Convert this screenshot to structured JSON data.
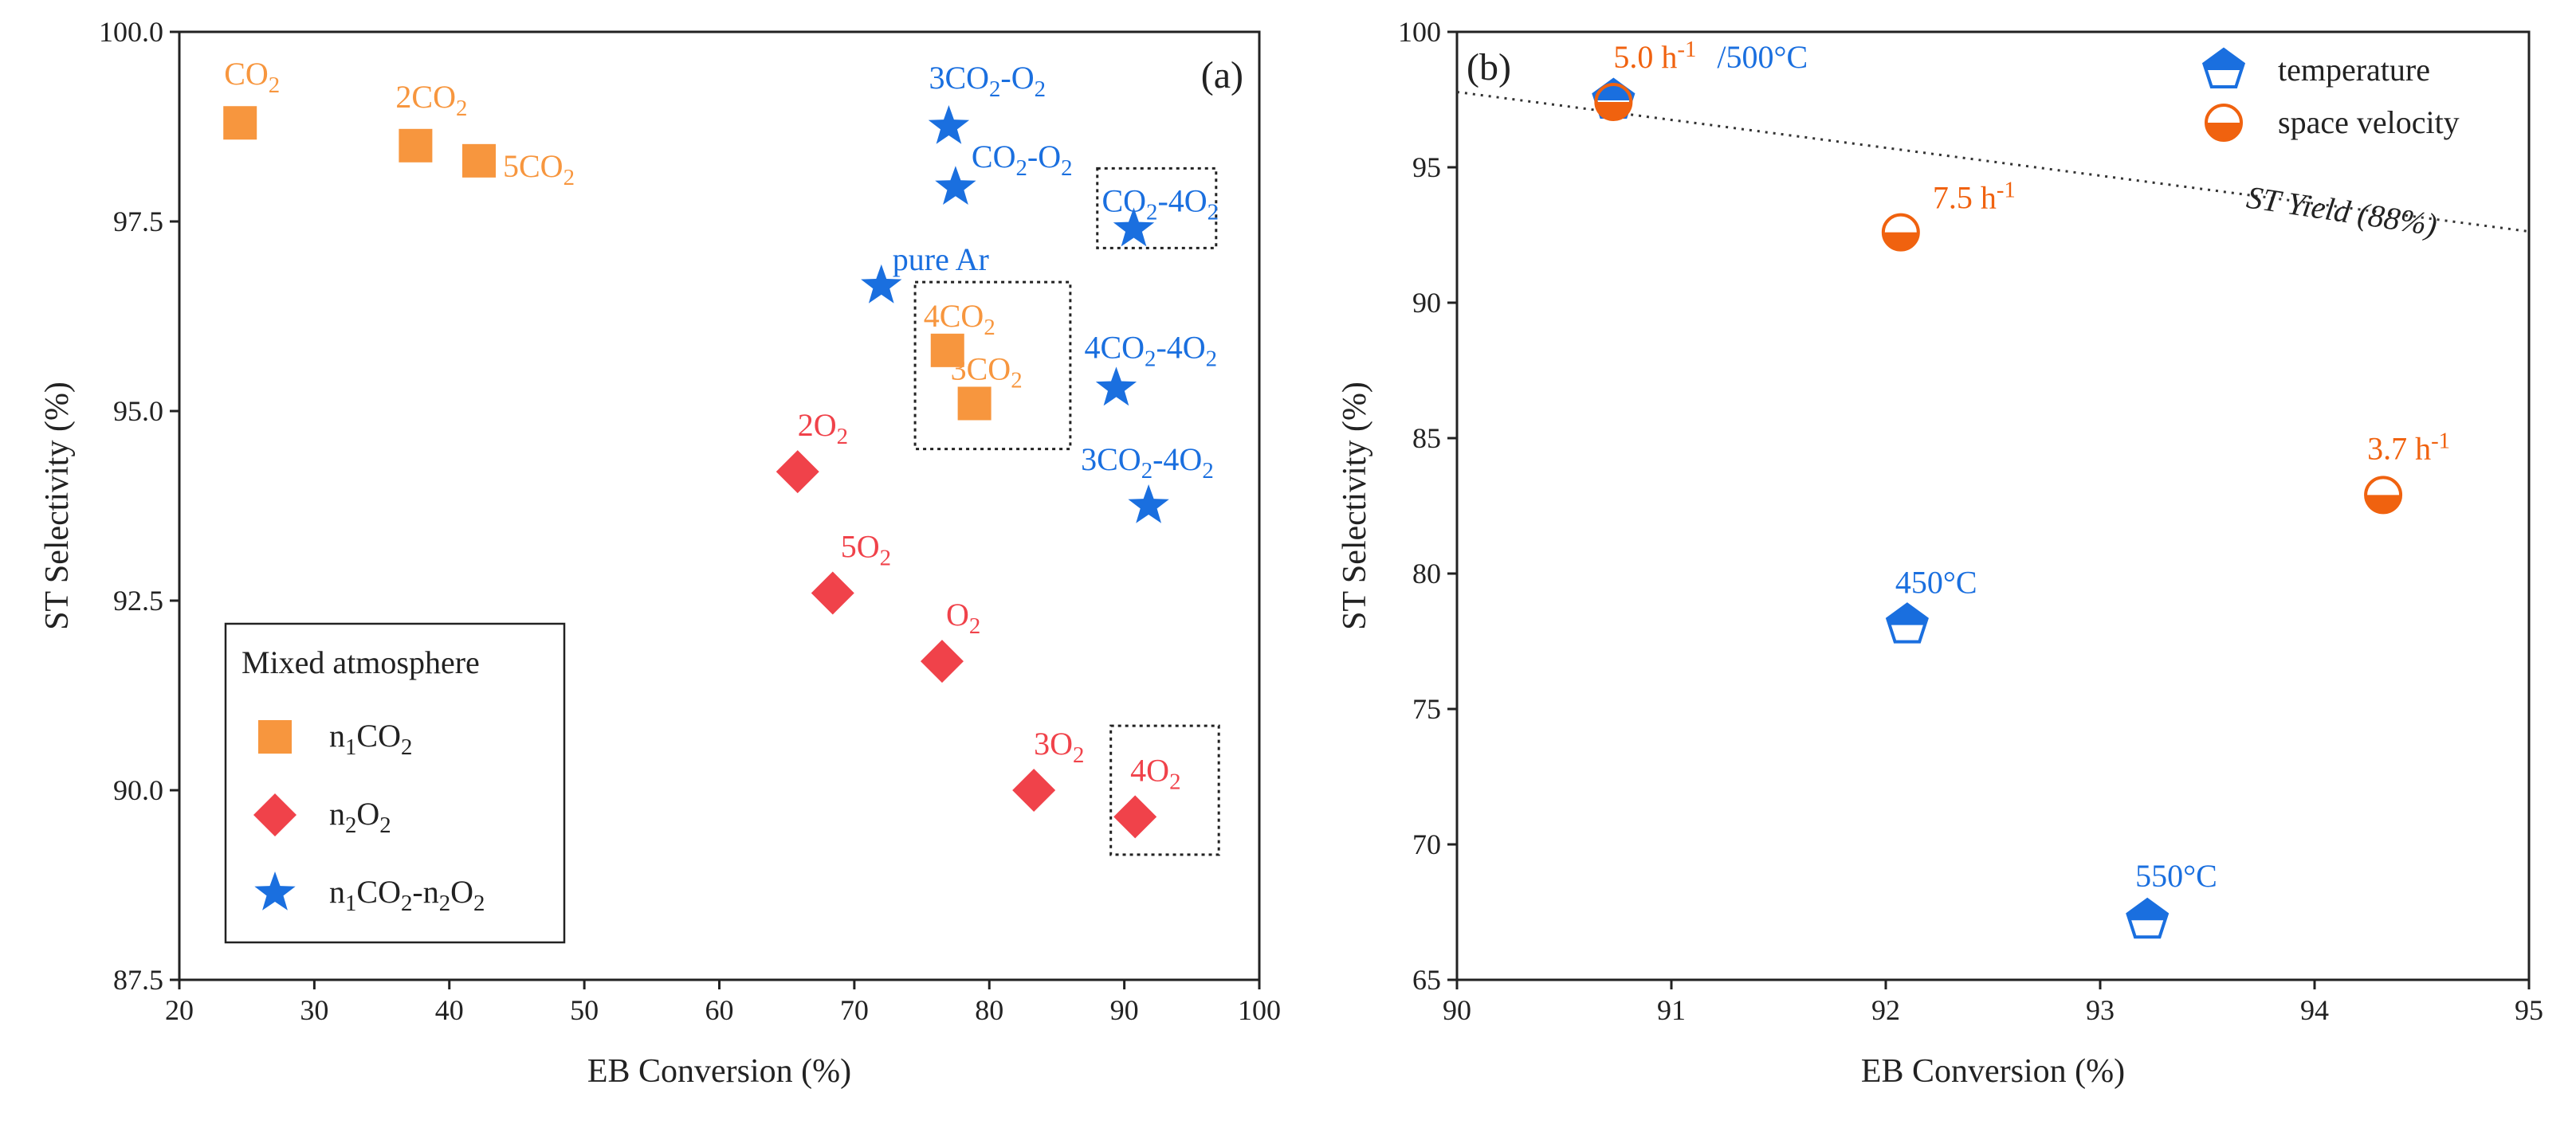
{
  "chart_data": [
    {
      "panel": "(a)",
      "type": "scatter",
      "xlabel": "EB Conversion (%)",
      "ylabel": "ST Selectivity (%)",
      "xlim": [
        20,
        100
      ],
      "ylim": [
        87.5,
        100.0
      ],
      "xticks": [
        "20",
        "30",
        "40",
        "50",
        "60",
        "70",
        "80",
        "90",
        "100"
      ],
      "yticks": [
        "87.5",
        "90.0",
        "92.5",
        "95.0",
        "97.5",
        "100.0"
      ],
      "legend": {
        "title": "Mixed atmosphere",
        "position": "bottom-left",
        "entries": [
          {
            "series": "co2",
            "label": "n1CO2"
          },
          {
            "series": "o2",
            "label": "n2O2"
          },
          {
            "series": "mix",
            "label": "n1CO2-n2O2"
          }
        ]
      },
      "series": [
        {
          "id": "co2",
          "name": "n1CO2",
          "marker": "square",
          "color": "#F7963E",
          "points": [
            {
              "label": "CO2",
              "x": 24.5,
              "y": 98.8
            },
            {
              "label": "2CO2",
              "x": 37.5,
              "y": 98.5
            },
            {
              "label": "5CO2",
              "x": 42.2,
              "y": 98.3
            },
            {
              "label": "4CO2",
              "x": 76.9,
              "y": 95.8
            },
            {
              "label": "3CO2",
              "x": 78.9,
              "y": 95.1
            }
          ]
        },
        {
          "id": "o2",
          "name": "n2O2",
          "marker": "diamond",
          "color": "#F0424A",
          "points": [
            {
              "label": "2O2",
              "x": 65.8,
              "y": 94.2
            },
            {
              "label": "5O2",
              "x": 68.4,
              "y": 92.6
            },
            {
              "label": "O2",
              "x": 76.5,
              "y": 91.7
            },
            {
              "label": "3O2",
              "x": 83.3,
              "y": 90.0
            },
            {
              "label": "4O2",
              "x": 90.8,
              "y": 89.65
            }
          ]
        },
        {
          "id": "mix",
          "name": "n1CO2-n2O2",
          "marker": "star",
          "color": "#1A6FDF",
          "points": [
            {
              "label": "3CO2-O2",
              "x": 77.0,
              "y": 98.75
            },
            {
              "label": "CO2-O2",
              "x": 77.5,
              "y": 97.95
            },
            {
              "label": "CO2-4O2",
              "x": 90.7,
              "y": 97.4
            },
            {
              "label": "pure Ar",
              "x": 72.0,
              "y": 96.65
            },
            {
              "label": "4CO2-4O2",
              "x": 89.4,
              "y": 95.3
            },
            {
              "label": "3CO2-4O2",
              "x": 91.8,
              "y": 93.75
            }
          ]
        }
      ],
      "highlight_boxes": [
        {
          "x": [
            74.5,
            86.0
          ],
          "y": [
            94.5,
            96.7
          ]
        },
        {
          "x": [
            89.0,
            97.0
          ],
          "y": [
            89.15,
            90.85
          ]
        },
        {
          "x": [
            88.0,
            96.8
          ],
          "y": [
            97.15,
            98.2
          ]
        }
      ]
    },
    {
      "panel": "(b)",
      "type": "scatter",
      "xlabel": "EB Conversion (%)",
      "ylabel": "ST Selectivity (%)",
      "xlim": [
        90,
        95
      ],
      "ylim": [
        65,
        100
      ],
      "xticks": [
        "90",
        "91",
        "92",
        "93",
        "94",
        "95"
      ],
      "yticks": [
        "65",
        "70",
        "75",
        "80",
        "85",
        "90",
        "95",
        "100"
      ],
      "legend": {
        "position": "top-right",
        "entries": [
          {
            "series": "temperature",
            "label": "temperature"
          },
          {
            "series": "space_velocity",
            "label": "space velocity"
          }
        ]
      },
      "series": [
        {
          "id": "temperature",
          "name": "temperature",
          "marker": "half-filled pentagon",
          "color": "#1A6FDF",
          "points": [
            {
              "label": "450°C",
              "x": 92.1,
              "y": 78.1
            },
            {
              "label": "550°C",
              "x": 93.22,
              "y": 67.2
            }
          ]
        },
        {
          "id": "space_velocity",
          "name": "space velocity",
          "marker": "half-filled circle",
          "color": "#F0620F",
          "points": [
            {
              "label": "7.5 h-1",
              "x": 92.07,
              "y": 92.6
            },
            {
              "label": "3.7 h-1",
              "x": 94.32,
              "y": 82.9
            }
          ]
        },
        {
          "id": "shared",
          "name": "5.0 h-1 / 500°C",
          "points": [
            {
              "x": 90.73,
              "y": 97.5
            }
          ]
        }
      ],
      "reference_line": {
        "label": "ST Yield (88%)",
        "style": "dotted",
        "points": [
          {
            "x": 90,
            "y": 97.78
          },
          {
            "x": 95,
            "y": 92.63
          }
        ]
      }
    }
  ]
}
